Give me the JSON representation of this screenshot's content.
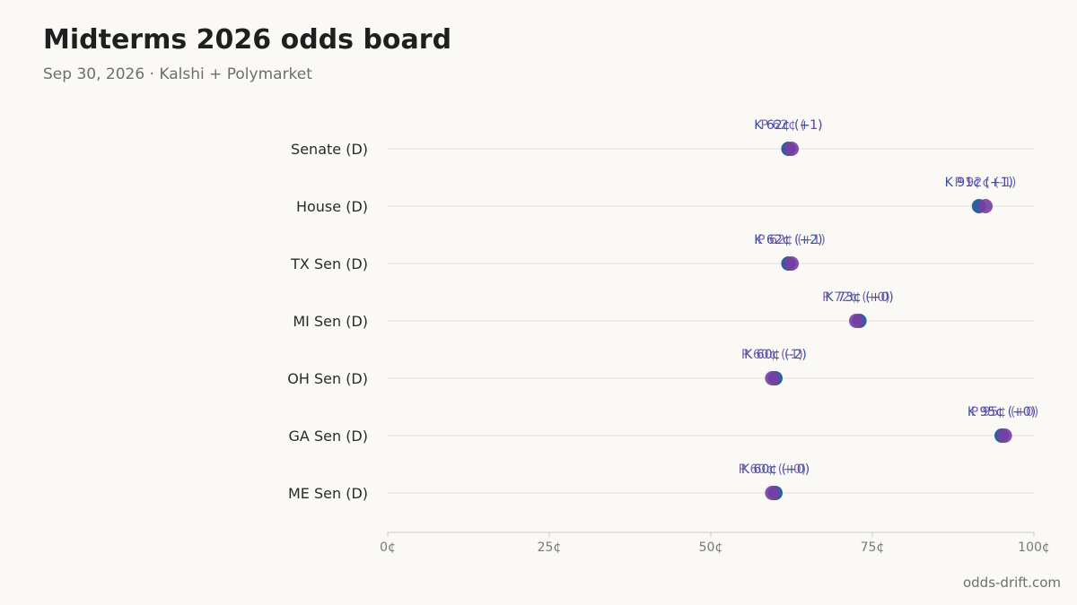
{
  "header": {
    "title": "Midterms 2026 odds board",
    "subtitle": "Sep 30, 2026 · Kalshi + Polymarket"
  },
  "footer": {
    "credit": "odds-drift.com"
  },
  "colors": {
    "background": "#faf9f6",
    "kalshi": "#2e5f9e",
    "polymarket": "#7a3fa3",
    "kalshi_label": "#3b4fa0",
    "polymarket_label": "#6a4aa3",
    "gridline": "#e2e0dc",
    "axis": "#cfcdc8"
  },
  "chart_data": {
    "type": "scatter",
    "title": "Midterms 2026 odds board",
    "subtitle": "Sep 30, 2026 · Kalshi + Polymarket",
    "xlabel": "",
    "ylabel": "",
    "xlim": [
      0,
      100
    ],
    "x_ticks": [
      0,
      25,
      50,
      75,
      100
    ],
    "x_tick_labels": [
      "0¢",
      "25¢",
      "50¢",
      "75¢",
      "100¢"
    ],
    "grid": "horizontal per row",
    "categories": [
      "Senate (D)",
      "House (D)",
      "TX Sen (D)",
      "MI Sen (D)",
      "OH Sen (D)",
      "GA Sen (D)",
      "ME Sen (D)"
    ],
    "series": [
      {
        "prefix": "K",
        "color": "#2e5f9e",
        "label_color": "#3b4fa0",
        "values": [
          62,
          91.5,
          62,
          73,
          60,
          95,
          60
        ],
        "labels": [
          "K 62¢ (+1)",
          "K 91¢ (+1)",
          "K 62¢ (+2)",
          "K 73¢ (+0)",
          "K 60¢ (-2)",
          "K 95¢ (+0)",
          "K 60¢ (+0)"
        ]
      },
      {
        "prefix": "P",
        "color": "#7a3fa3",
        "label_color": "#6a4aa3",
        "values": [
          62.5,
          92.5,
          62.5,
          72.5,
          59.5,
          95.5,
          59.5
        ],
        "labels": [
          "P 62¢ (-1)",
          "P 92¢ (-1)",
          "P 62¢ (+1)",
          "P 72¢ (+0)",
          "P 60¢ (-1)",
          "P 95¢ (+0)",
          "P 60¢ (+0)"
        ]
      }
    ]
  }
}
